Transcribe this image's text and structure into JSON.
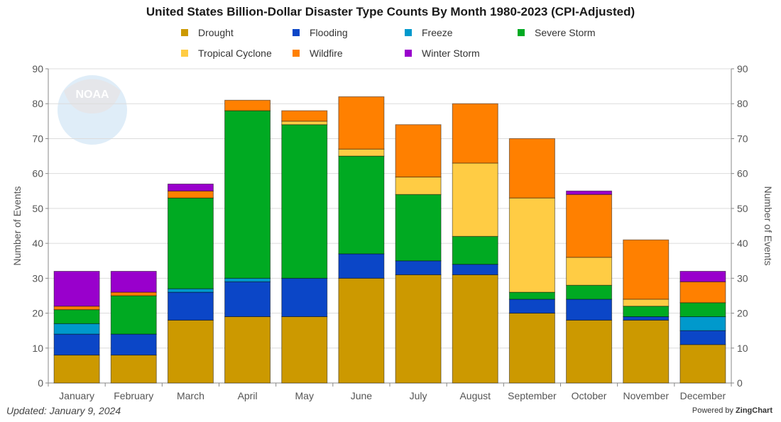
{
  "chart_data": {
    "type": "bar",
    "stacked": true,
    "title": "United States Billion-Dollar Disaster Type Counts By Month 1980-2023 (CPI-Adjusted)",
    "xlabel": "",
    "ylabel": "Number of Events",
    "ylabel_right": "Number of Events",
    "ylim": [
      0,
      90
    ],
    "yticks": [
      0,
      10,
      20,
      30,
      40,
      50,
      60,
      70,
      80,
      90
    ],
    "grid": true,
    "legend_position": "top",
    "categories": [
      "January",
      "February",
      "March",
      "April",
      "May",
      "June",
      "July",
      "August",
      "September",
      "October",
      "November",
      "December"
    ],
    "series": [
      {
        "name": "Drought",
        "color": "#CC9900",
        "values": [
          8,
          8,
          18,
          19,
          19,
          30,
          31,
          31,
          20,
          18,
          18,
          11
        ]
      },
      {
        "name": "Flooding",
        "color": "#0B46C7",
        "values": [
          6,
          6,
          8,
          10,
          11,
          7,
          4,
          3,
          4,
          6,
          1,
          4
        ]
      },
      {
        "name": "Freeze",
        "color": "#0099CC",
        "values": [
          3,
          0,
          1,
          1,
          0,
          0,
          0,
          0,
          0,
          0,
          0,
          4
        ]
      },
      {
        "name": "Severe Storm",
        "color": "#00AA22",
        "values": [
          4,
          11,
          26,
          48,
          44,
          28,
          19,
          8,
          2,
          4,
          3,
          4
        ]
      },
      {
        "name": "Tropical Cyclone",
        "color": "#FFCC44",
        "values": [
          0,
          0,
          0,
          0,
          1,
          2,
          5,
          21,
          27,
          8,
          2,
          0
        ]
      },
      {
        "name": "Wildfire",
        "color": "#FF8000",
        "values": [
          1,
          1,
          2,
          3,
          3,
          15,
          15,
          17,
          17,
          18,
          17,
          6
        ]
      },
      {
        "name": "Winter Storm",
        "color": "#9900CC",
        "values": [
          10,
          6,
          2,
          0,
          0,
          0,
          0,
          0,
          0,
          1,
          0,
          3
        ]
      }
    ]
  },
  "footer": {
    "updated": "Updated: January 9, 2024",
    "powered_prefix": "Powered by",
    "powered_brand": "ZingChart"
  },
  "logo": {
    "text": "NOAA"
  }
}
